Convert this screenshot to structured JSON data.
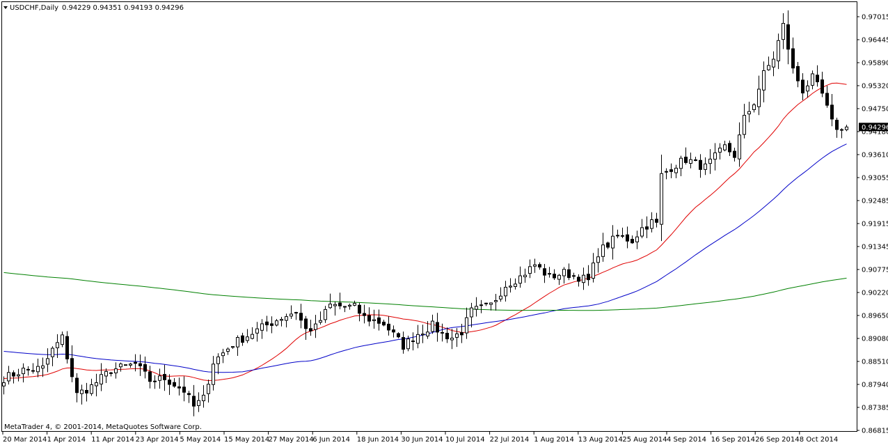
{
  "header": {
    "symbol_timeframe": "USDCHF,Daily",
    "ohlc": "0.94229 0.94351 0.94193 0.94296"
  },
  "footer": {
    "copyright": "MetaTrader 4, © 2001-2014, MetaQuotes Software Corp."
  },
  "price_tag": "0.94296",
  "chart_data": {
    "type": "candlestick",
    "price_axis_ticks": [
      "0.97015",
      "0.96445",
      "0.95890",
      "0.95320",
      "0.94750",
      "0.94180",
      "0.93610",
      "0.93055",
      "0.92485",
      "0.91915",
      "0.91345",
      "0.90775",
      "0.90220",
      "0.89650",
      "0.89080",
      "0.88510",
      "0.87940",
      "0.87385",
      "0.86815"
    ],
    "date_labels": [
      "20 Mar 2014",
      "1 Apr 2014",
      "11 Apr 2014",
      "23 Apr 2014",
      "5 May 2014",
      "15 May 2014",
      "27 May 2014",
      "6 Jun 2014",
      "18 Jun 2014",
      "30 Jun 2014",
      "10 Jul 2014",
      "22 Jul 2014",
      "1 Aug 2014",
      "13 Aug 2014",
      "25 Aug 2014",
      "4 Sep 2014",
      "16 Sep 2014",
      "26 Sep 2014",
      "8 Oct 2014"
    ],
    "ylim": [
      0.86815,
      0.97015
    ],
    "last_price": 0.94296,
    "anchors": [
      [
        0,
        0.881
      ],
      [
        4,
        0.883
      ],
      [
        8,
        0.8835
      ],
      [
        10,
        0.888
      ],
      [
        12,
        0.891
      ],
      [
        15,
        0.877
      ],
      [
        18,
        0.879
      ],
      [
        22,
        0.883
      ],
      [
        27,
        0.8845
      ],
      [
        30,
        0.8805
      ],
      [
        33,
        0.881
      ],
      [
        37,
        0.878
      ],
      [
        39,
        0.874
      ],
      [
        41,
        0.876
      ],
      [
        43,
        0.885
      ],
      [
        47,
        0.8895
      ],
      [
        53,
        0.8935
      ],
      [
        57,
        0.896
      ],
      [
        60,
        0.8975
      ],
      [
        62,
        0.893
      ],
      [
        64,
        0.8935
      ],
      [
        67,
        0.899
      ],
      [
        72,
        0.8985
      ],
      [
        74,
        0.896
      ],
      [
        78,
        0.8945
      ],
      [
        82,
        0.889
      ],
      [
        85,
        0.892
      ],
      [
        88,
        0.894
      ],
      [
        90,
        0.892
      ],
      [
        92,
        0.891
      ],
      [
        94,
        0.8925
      ],
      [
        96,
        0.8975
      ],
      [
        100,
        0.899
      ],
      [
        103,
        0.904
      ],
      [
        106,
        0.906
      ],
      [
        109,
        0.909
      ],
      [
        112,
        0.906
      ],
      [
        115,
        0.907
      ],
      [
        118,
        0.906
      ],
      [
        120,
        0.905
      ],
      [
        122,
        0.912
      ],
      [
        126,
        0.916
      ],
      [
        129,
        0.915
      ],
      [
        131,
        0.918
      ],
      [
        133,
        0.9195
      ],
      [
        134,
        0.919
      ],
      [
        135,
        0.931
      ],
      [
        137,
        0.933
      ],
      [
        140,
        0.935
      ],
      [
        144,
        0.933
      ],
      [
        148,
        0.938
      ],
      [
        150,
        0.936
      ],
      [
        152,
        0.945
      ],
      [
        154,
        0.949
      ],
      [
        156,
        0.956
      ],
      [
        158,
        0.96
      ],
      [
        160,
        0.968
      ],
      [
        162,
        0.957
      ],
      [
        164,
        0.952
      ],
      [
        166,
        0.955
      ],
      [
        168,
        0.951
      ],
      [
        170,
        0.944
      ],
      [
        172,
        0.942
      ],
      [
        173,
        0.943
      ]
    ],
    "moving_averages": [
      {
        "color": "#e00000",
        "period": 20
      },
      {
        "color": "#0000c8",
        "period": 50
      },
      {
        "color": "#008000",
        "period": 200
      }
    ],
    "colors": {
      "bull_fill": "#ffffff",
      "bear_fill": "#000000",
      "wick": "#000000",
      "border": "#000000",
      "ma_fast": "#e00000",
      "ma_mid": "#0000c8",
      "ma_slow": "#008000"
    }
  }
}
